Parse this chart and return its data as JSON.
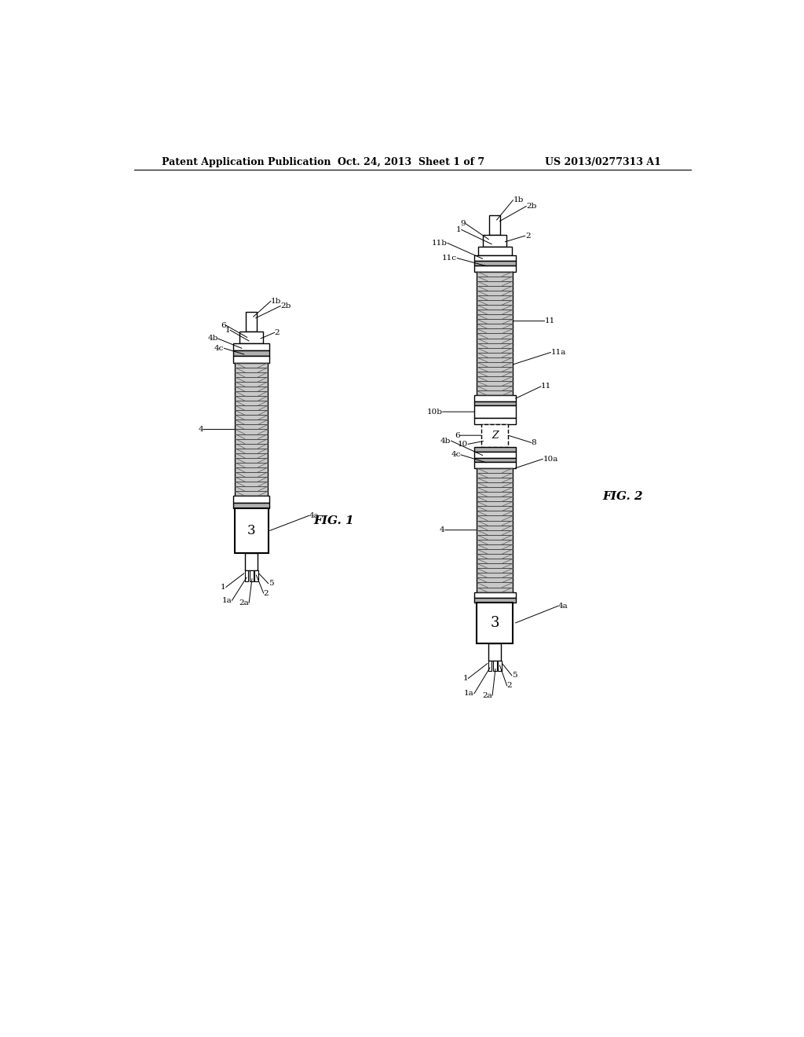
{
  "bg_color": "#ffffff",
  "header_left": "Patent Application Publication",
  "header_center": "Oct. 24, 2013  Sheet 1 of 7",
  "header_right": "US 2013/0277313 A1",
  "fig1_label": "FIG. 1",
  "fig2_label": "FIG. 2",
  "header_font_size": 9,
  "label_font_size": 7.5
}
